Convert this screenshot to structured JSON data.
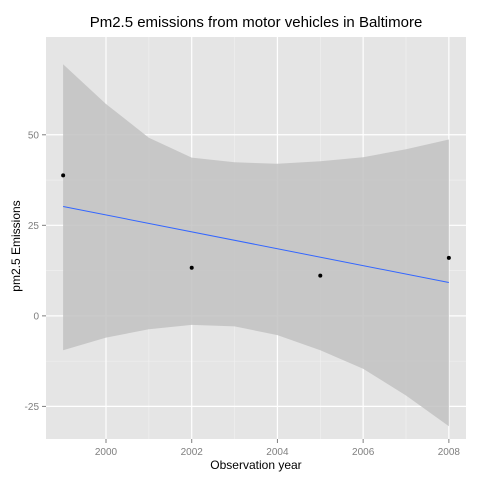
{
  "chart_data": {
    "type": "scatter",
    "title": "Pm2.5 emissions from motor vehicles in Baltimore",
    "xlabel": "Observation year",
    "ylabel": "pm2.5 Emissions",
    "xlim": [
      1998.6,
      2008.4
    ],
    "ylim": [
      -34,
      77
    ],
    "x_ticks": [
      2000,
      2002,
      2004,
      2006,
      2008
    ],
    "y_ticks": [
      -25,
      0,
      25,
      50
    ],
    "grid": true,
    "points": [
      {
        "x": 1999,
        "y": 38.8
      },
      {
        "x": 2002,
        "y": 13.3
      },
      {
        "x": 2005,
        "y": 11.1
      },
      {
        "x": 2008,
        "y": 16.0
      }
    ],
    "trend_line": {
      "method": "linear regression",
      "x": [
        1999,
        2008
      ],
      "y": [
        30.2,
        9.2
      ]
    },
    "confidence_band": {
      "x": [
        1999,
        2000,
        2001,
        2002,
        2003,
        2004,
        2005,
        2006,
        2007,
        2008
      ],
      "upper": [
        69.5,
        58.5,
        49.2,
        43.7,
        42.4,
        42.0,
        42.7,
        43.8,
        46.0,
        48.7
      ],
      "lower": [
        -9.5,
        -6.0,
        -3.7,
        -2.5,
        -2.9,
        -5.3,
        -9.5,
        -14.6,
        -22.0,
        -30.5
      ]
    },
    "colors": {
      "panel": "#e5e5e5",
      "grid_major": "#ffffff",
      "grid_minor": "#f2f2f2",
      "band": "#c2c2c2",
      "trend": "#3366ff",
      "point": "#000000"
    }
  }
}
